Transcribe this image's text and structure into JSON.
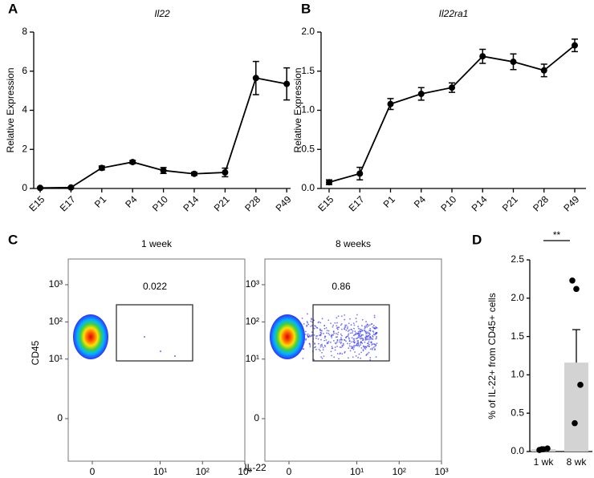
{
  "chart_data": [
    {
      "panel": "A",
      "type": "line",
      "title": "Il22",
      "y_label": "Relative Expression",
      "categories": [
        "E15",
        "E17",
        "P1",
        "P4",
        "P10",
        "P14",
        "P21",
        "P28",
        "P49"
      ],
      "series": [
        {
          "color": "#000000",
          "values": [
            0.03,
            0.05,
            1.05,
            1.35,
            0.92,
            0.75,
            0.82,
            5.65,
            5.35
          ],
          "errors": [
            0.03,
            0.03,
            0.1,
            0.08,
            0.15,
            0.08,
            0.22,
            0.85,
            0.82
          ]
        }
      ],
      "ylim": [
        0,
        8
      ],
      "yticks": [
        0,
        2,
        4,
        6,
        8
      ]
    },
    {
      "panel": "B",
      "type": "line",
      "title": "Il22ra1",
      "y_label": "Relative Expression",
      "categories": [
        "E15",
        "E17",
        "P1",
        "P4",
        "P10",
        "P14",
        "P21",
        "P28",
        "P49"
      ],
      "series": [
        {
          "color": "#000000",
          "values": [
            0.08,
            0.19,
            1.08,
            1.21,
            1.29,
            1.69,
            1.62,
            1.51,
            1.83
          ],
          "errors": [
            0.03,
            0.08,
            0.07,
            0.08,
            0.06,
            0.09,
            0.1,
            0.08,
            0.08
          ]
        }
      ],
      "ylim": [
        0,
        2
      ],
      "yticks": [
        {
          "value": 0,
          "label": "0.0"
        },
        {
          "value": 0.5,
          "label": "0.5"
        },
        {
          "value": 1,
          "label": "1.0"
        },
        {
          "value": 1.5,
          "label": "1.5"
        },
        {
          "value": 2,
          "label": "2.0"
        }
      ]
    },
    {
      "panel": "C",
      "type": "flow",
      "x_label": "IL-22",
      "y_label": "CD45",
      "plots": [
        {
          "title": "1 week",
          "gate_value": 0.022
        },
        {
          "title": "8 weeks",
          "gate_value": 0.86
        }
      ],
      "xlim": [
        0,
        1000
      ],
      "ylim": [
        0,
        1000
      ],
      "xticks": [
        0,
        {
          "value": 10,
          "label": "10¹"
        },
        {
          "value": 100,
          "label": "10²"
        },
        {
          "value": 1000,
          "label": "10³"
        }
      ],
      "yticks": [
        0,
        {
          "value": 10,
          "label": "10¹"
        },
        {
          "value": 100,
          "label": "10²"
        },
        {
          "value": 1000,
          "label": "10³"
        }
      ]
    },
    {
      "panel": "D",
      "type": "bar",
      "y_label": "% of IL-22+ from CD45+ cells",
      "annotation": "**",
      "categories": [
        "1 wk",
        "8 wk"
      ],
      "values": [
        0.03,
        1.16
      ],
      "errors": [
        0.01,
        0.43
      ],
      "color": "#d3d3d3",
      "points": [
        [
          0.02,
          0.03,
          0.04,
          0.03
        ],
        [
          2.23,
          2.12,
          0.87,
          0.37
        ]
      ],
      "ylim": [
        0,
        2.5
      ],
      "yticks": [
        {
          "value": 0,
          "label": "0.0"
        },
        {
          "value": 0.5,
          "label": "0.5"
        },
        {
          "value": 1,
          "label": "1.0"
        },
        {
          "value": 1.5,
          "label": "1.5"
        },
        {
          "value": 2,
          "label": "2.0"
        },
        {
          "value": 2.5,
          "label": "2.5"
        }
      ]
    }
  ]
}
